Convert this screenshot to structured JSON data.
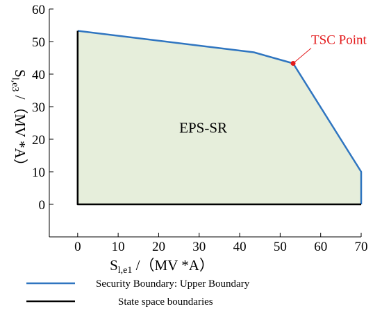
{
  "chart_data": {
    "type": "area",
    "xlabel": {
      "main": "S",
      "sub": "l,e1",
      "rest": " /（MV *A）"
    },
    "ylabel": {
      "main": "S",
      "sub": "l,e3",
      "rest": " /（MV *A）"
    },
    "xlim": [
      -7,
      70
    ],
    "ylim": [
      -10,
      60
    ],
    "xticks": [
      0,
      10,
      20,
      30,
      40,
      50,
      60,
      70
    ],
    "yticks": [
      0,
      10,
      20,
      30,
      40,
      50,
      60
    ],
    "grid": false,
    "region": {
      "label": "EPS-SR",
      "label_at": [
        31,
        22
      ],
      "fill_color": "#e6eedb"
    },
    "series": [
      {
        "name": "Security Boundary: Upper Boundary",
        "color": "#2f75c0",
        "x": [
          0,
          43.5,
          53.2,
          70,
          70
        ],
        "y": [
          53.3,
          46.7,
          43.3,
          10,
          0
        ]
      },
      {
        "name": "State space boundaries",
        "color": "#000000",
        "x": [
          0,
          0,
          70
        ],
        "y": [
          53.3,
          0,
          0
        ]
      }
    ],
    "annotations": [
      {
        "text": "TSC Point",
        "x": 53.2,
        "y": 43.3,
        "color": "#e31a1c"
      }
    ],
    "legend": {
      "placement": "bottom",
      "entries": [
        {
          "label": "Security Boundary: Upper Boundary",
          "color": "#2f75c0"
        },
        {
          "label": "State space boundaries",
          "color": "#000000"
        }
      ]
    }
  }
}
